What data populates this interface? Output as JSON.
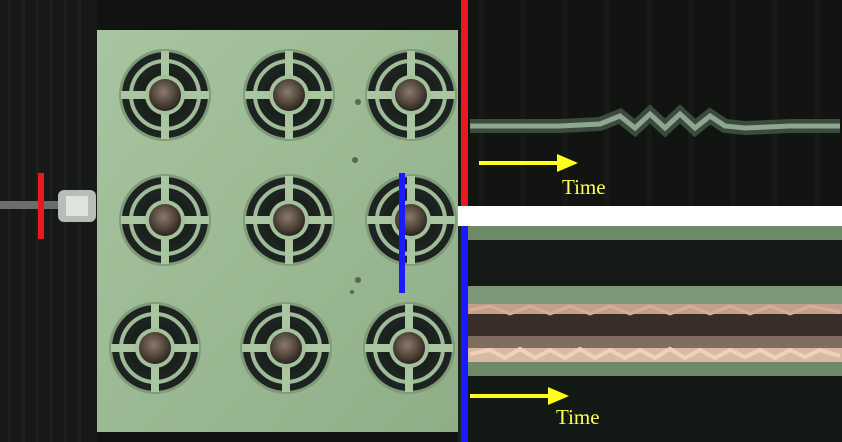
{
  "figure": {
    "left_panel": {
      "description_marker_colors": {
        "red": "#e8191f",
        "blue": "#1a1aff"
      }
    },
    "top_right_panel": {
      "time_label": "Time",
      "accent": "#e8191f"
    },
    "bottom_right_panel": {
      "time_label": "Time",
      "accent": "#1a1aff"
    },
    "arrow_color": "#ffff1a"
  }
}
